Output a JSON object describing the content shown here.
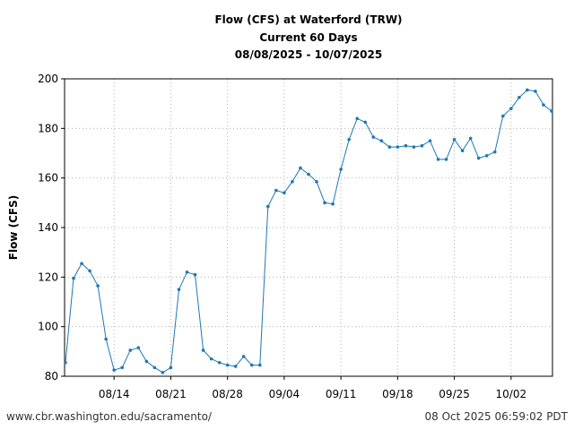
{
  "header": {
    "title_line1": "Flow (CFS) at Waterford (TRW)",
    "title_line2": "Current 60 Days",
    "title_line3": "08/08/2025 - 10/07/2025"
  },
  "footer": {
    "source": "www.cbr.washington.edu/sacramento/",
    "timestamp": "08 Oct 2025 06:59:02 PDT"
  },
  "chart_data": {
    "type": "line",
    "title": "Flow (CFS) at Waterford (TRW)",
    "subtitle": "Current 60 Days, 08/08/2025 - 10/07/2025",
    "xlabel": "",
    "ylabel": "Flow (CFS)",
    "ylim": [
      80,
      200
    ],
    "yticks": [
      80,
      100,
      120,
      140,
      160,
      180,
      200
    ],
    "xticks": [
      "08/14",
      "08/21",
      "08/28",
      "09/04",
      "09/11",
      "09/18",
      "09/25",
      "10/02"
    ],
    "grid": true,
    "line_color": "#1f77b4",
    "series": [
      {
        "x": [
          "08/08",
          "08/09",
          "08/10",
          "08/11",
          "08/12",
          "08/13",
          "08/14",
          "08/15",
          "08/16",
          "08/17",
          "08/18",
          "08/19",
          "08/20",
          "08/21",
          "08/22",
          "08/23",
          "08/24",
          "08/25",
          "08/26",
          "08/27",
          "08/28",
          "08/29",
          "08/30",
          "08/31",
          "09/01",
          "09/02",
          "09/03",
          "09/04",
          "09/05",
          "09/06",
          "09/07",
          "09/08",
          "09/09",
          "09/10",
          "09/11",
          "09/12",
          "09/13",
          "09/14",
          "09/15",
          "09/16",
          "09/17",
          "09/18",
          "09/19",
          "09/20",
          "09/21",
          "09/22",
          "09/23",
          "09/24",
          "09/25",
          "09/26",
          "09/27",
          "09/28",
          "09/29",
          "09/30",
          "10/01",
          "10/02",
          "10/03",
          "10/04",
          "10/05",
          "10/06",
          "10/07"
        ],
        "values": [
          85.5,
          119.5,
          125.5,
          122.5,
          116.5,
          95,
          82.5,
          83.5,
          90.5,
          91.5,
          86,
          83.5,
          81.5,
          83.5,
          115,
          122,
          121,
          90.5,
          87,
          85.5,
          84.5,
          84,
          88,
          84.5,
          84.5,
          148.5,
          155,
          154,
          158.5,
          164,
          161.5,
          158.5,
          150,
          149.5,
          163.5,
          175.5,
          184,
          182.5,
          176.5,
          175,
          172.5,
          172.5,
          173,
          172.5,
          173,
          175,
          167.5,
          167.5,
          175.5,
          171,
          176,
          168,
          169,
          170.5,
          185,
          188,
          192.5,
          195.5,
          195,
          189.5,
          187
        ]
      }
    ]
  }
}
